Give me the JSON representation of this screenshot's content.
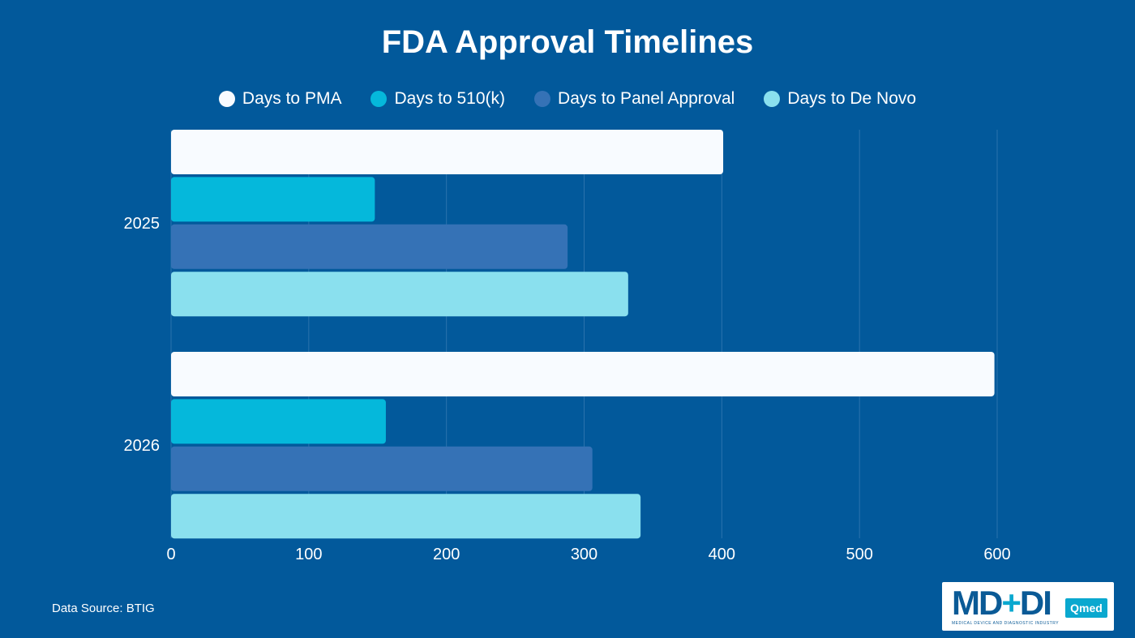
{
  "chart_data": {
    "type": "bar",
    "orientation": "horizontal",
    "title": "FDA Approval Timelines",
    "categories": [
      "2025",
      "2026"
    ],
    "series": [
      {
        "name": "Days to PMA",
        "color": "#f8fbff",
        "values": [
          401,
          598
        ]
      },
      {
        "name": "Days to 510(k)",
        "color": "#05b8db",
        "values": [
          148,
          156
        ]
      },
      {
        "name": "Days to Panel Approval",
        "color": "#3572b6",
        "values": [
          288,
          306
        ]
      },
      {
        "name": "Days to De Novo",
        "color": "#8ae0ee",
        "values": [
          332,
          341
        ]
      }
    ],
    "xticks": [
      0,
      100,
      200,
      300,
      400,
      500,
      600
    ],
    "xlim": [
      0,
      600
    ],
    "xlabel": "",
    "ylabel": "",
    "grid": "vertical",
    "legend_position": "top"
  },
  "footer": {
    "source": "Data Source: BTIG"
  },
  "logo": {
    "mark_left": "MD",
    "mark_plus": "+",
    "mark_right": "DI",
    "badge": "Qmed",
    "subtitle": "MEDICAL DEVICE AND DIAGNOSTIC INDUSTRY"
  },
  "colors": {
    "background": "#02599b",
    "text": "#ffffff",
    "grid": "#2b73ad"
  }
}
